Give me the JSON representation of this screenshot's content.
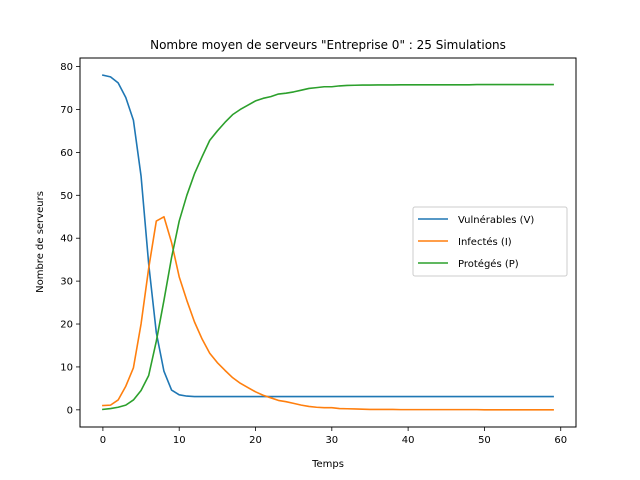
{
  "chart_data": {
    "type": "line",
    "title": "Nombre moyen de serveurs \"Entreprise 0\" : 25 Simulations",
    "xlabel": "Temps",
    "ylabel": "Nombre de serveurs",
    "xlim": [
      -3,
      62
    ],
    "ylim": [
      -4,
      82
    ],
    "xticks": [
      0,
      10,
      20,
      30,
      40,
      50,
      60
    ],
    "yticks": [
      0,
      10,
      20,
      30,
      40,
      50,
      60,
      70,
      80
    ],
    "grid": false,
    "legend_position": "center-right",
    "x": [
      0,
      1,
      2,
      3,
      4,
      5,
      6,
      7,
      8,
      9,
      10,
      11,
      12,
      13,
      14,
      15,
      16,
      17,
      18,
      19,
      20,
      21,
      22,
      23,
      24,
      25,
      26,
      27,
      28,
      29,
      30,
      31,
      32,
      33,
      34,
      35,
      36,
      37,
      38,
      39,
      40,
      41,
      42,
      43,
      44,
      45,
      46,
      47,
      48,
      49,
      50,
      51,
      52,
      53,
      54,
      55,
      56,
      57,
      58,
      59
    ],
    "series": [
      {
        "name": "Vulnérables (V)",
        "color": "#1f77b4",
        "values": [
          78,
          77.6,
          76.2,
          72.8,
          67.5,
          54.5,
          34,
          18,
          9,
          4.6,
          3.5,
          3.2,
          3.1,
          3.1,
          3.1,
          3.1,
          3.1,
          3.1,
          3.1,
          3.1,
          3.1,
          3.1,
          3.1,
          3.1,
          3.1,
          3.1,
          3.1,
          3.1,
          3.1,
          3.1,
          3.1,
          3.1,
          3.1,
          3.1,
          3.1,
          3.1,
          3.1,
          3.1,
          3.1,
          3.1,
          3.1,
          3.1,
          3.1,
          3.1,
          3.1,
          3.1,
          3.1,
          3.1,
          3.1,
          3.1,
          3.1,
          3.1,
          3.1,
          3.1,
          3.1,
          3.1,
          3.1,
          3.1,
          3.1,
          3.1
        ]
      },
      {
        "name": "Infectés (I)",
        "color": "#ff7f0e",
        "values": [
          1,
          1.1,
          2.3,
          5.5,
          9.8,
          20,
          33,
          44,
          45,
          39,
          31,
          25.5,
          20.5,
          16.5,
          13.2,
          11,
          9.2,
          7.5,
          6.2,
          5.2,
          4.2,
          3.4,
          2.8,
          2.2,
          1.9,
          1.5,
          1.1,
          0.8,
          0.6,
          0.5,
          0.5,
          0.3,
          0.25,
          0.2,
          0.15,
          0.1,
          0.1,
          0.1,
          0.1,
          0.05,
          0.05,
          0.05,
          0.05,
          0.05,
          0.05,
          0.05,
          0.05,
          0.05,
          0.05,
          0.05,
          0,
          0,
          0,
          0,
          0,
          0,
          0,
          0,
          0,
          0
        ]
      },
      {
        "name": "Protégés (P)",
        "color": "#2ca02c",
        "values": [
          0.1,
          0.3,
          0.6,
          1.1,
          2.3,
          4.5,
          8,
          16,
          25.5,
          35.5,
          44,
          50,
          55,
          59,
          62.8,
          65,
          67,
          68.8,
          70,
          71,
          72,
          72.6,
          73,
          73.6,
          73.8,
          74.1,
          74.5,
          74.9,
          75.1,
          75.3,
          75.3,
          75.5,
          75.6,
          75.65,
          75.7,
          75.7,
          75.72,
          75.72,
          75.72,
          75.75,
          75.75,
          75.75,
          75.75,
          75.75,
          75.75,
          75.75,
          75.75,
          75.75,
          75.75,
          75.8,
          75.8,
          75.8,
          75.8,
          75.8,
          75.8,
          75.8,
          75.8,
          75.8,
          75.8,
          75.8
        ]
      }
    ]
  }
}
